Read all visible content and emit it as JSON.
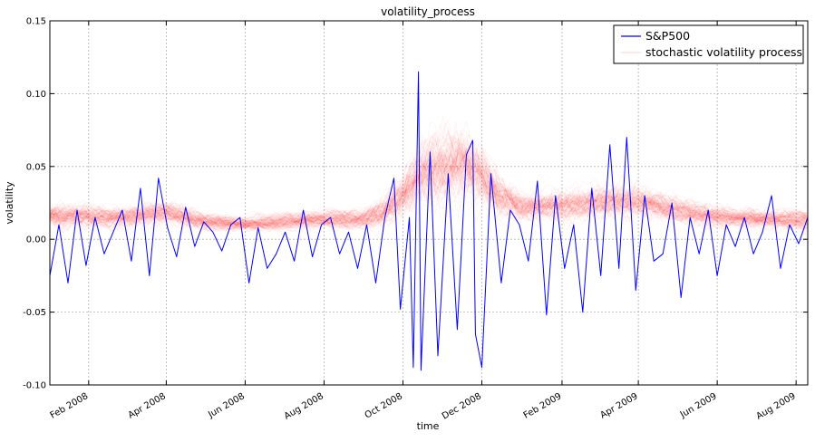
{
  "chart_data": {
    "type": "line",
    "title": "volatility_process",
    "xlabel": "time",
    "ylabel": "volatility",
    "ylim": [
      -0.1,
      0.15
    ],
    "xlim": [
      "2008-01-02",
      "2009-08-10"
    ],
    "grid": true,
    "legend_position": "top-right",
    "y_ticks": [
      "-0.10",
      "-0.05",
      "0.00",
      "0.05",
      "0.10",
      "0.15"
    ],
    "x_ticks": [
      {
        "date": "2008-02-01",
        "label": "Feb 2008"
      },
      {
        "date": "2008-04-01",
        "label": "Apr 2008"
      },
      {
        "date": "2008-06-01",
        "label": "Jun 2008"
      },
      {
        "date": "2008-08-01",
        "label": "Aug 2008"
      },
      {
        "date": "2008-10-01",
        "label": "Oct 2008"
      },
      {
        "date": "2008-12-01",
        "label": "Dec 2008"
      },
      {
        "date": "2009-02-01",
        "label": "Feb 2009"
      },
      {
        "date": "2009-04-01",
        "label": "Apr 2009"
      },
      {
        "date": "2009-06-01",
        "label": "Jun 2009"
      },
      {
        "date": "2009-08-01",
        "label": "Aug 2009"
      }
    ],
    "series": [
      {
        "name": "S&P500",
        "color": "#0000ff",
        "style": "line",
        "approximate": true,
        "x": [
          "2008-01-02",
          "2008-01-09",
          "2008-01-16",
          "2008-01-23",
          "2008-01-30",
          "2008-02-06",
          "2008-02-13",
          "2008-02-20",
          "2008-02-27",
          "2008-03-05",
          "2008-03-12",
          "2008-03-19",
          "2008-03-26",
          "2008-04-02",
          "2008-04-09",
          "2008-04-16",
          "2008-04-23",
          "2008-04-30",
          "2008-05-07",
          "2008-05-14",
          "2008-05-21",
          "2008-05-28",
          "2008-06-04",
          "2008-06-11",
          "2008-06-18",
          "2008-06-25",
          "2008-07-02",
          "2008-07-09",
          "2008-07-16",
          "2008-07-23",
          "2008-07-30",
          "2008-08-06",
          "2008-08-13",
          "2008-08-20",
          "2008-08-27",
          "2008-09-03",
          "2008-09-10",
          "2008-09-17",
          "2008-09-24",
          "2008-09-29",
          "2008-10-06",
          "2008-10-09",
          "2008-10-13",
          "2008-10-15",
          "2008-10-22",
          "2008-10-28",
          "2008-11-05",
          "2008-11-12",
          "2008-11-19",
          "2008-11-24",
          "2008-11-26",
          "2008-12-01",
          "2008-12-08",
          "2008-12-16",
          "2008-12-23",
          "2008-12-30",
          "2009-01-06",
          "2009-01-13",
          "2009-01-20",
          "2009-01-27",
          "2009-02-03",
          "2009-02-10",
          "2009-02-17",
          "2009-02-24",
          "2009-03-03",
          "2009-03-10",
          "2009-03-17",
          "2009-03-23",
          "2009-03-30",
          "2009-04-06",
          "2009-04-13",
          "2009-04-20",
          "2009-04-27",
          "2009-05-04",
          "2009-05-11",
          "2009-05-18",
          "2009-05-25",
          "2009-06-01",
          "2009-06-08",
          "2009-06-15",
          "2009-06-22",
          "2009-06-29",
          "2009-07-06",
          "2009-07-13",
          "2009-07-20",
          "2009-07-27",
          "2009-08-03",
          "2009-08-10"
        ],
        "y": [
          -0.025,
          0.01,
          -0.03,
          0.02,
          -0.018,
          0.015,
          -0.01,
          0.005,
          0.02,
          -0.015,
          0.035,
          -0.025,
          0.042,
          0.008,
          -0.012,
          0.022,
          -0.005,
          0.012,
          0.005,
          -0.008,
          0.01,
          0.015,
          -0.03,
          0.008,
          -0.02,
          -0.01,
          0.005,
          -0.015,
          0.02,
          -0.012,
          0.01,
          0.015,
          -0.01,
          0.005,
          -0.02,
          0.01,
          -0.03,
          0.015,
          0.042,
          -0.048,
          0.015,
          -0.088,
          0.115,
          -0.09,
          0.06,
          -0.08,
          0.045,
          -0.062,
          0.058,
          0.068,
          -0.065,
          -0.088,
          0.045,
          -0.03,
          0.02,
          0.01,
          -0.015,
          0.04,
          -0.052,
          0.03,
          -0.02,
          0.01,
          -0.05,
          0.035,
          -0.025,
          0.065,
          -0.02,
          0.07,
          -0.035,
          0.03,
          -0.015,
          -0.01,
          0.025,
          -0.04,
          0.015,
          -0.01,
          0.02,
          -0.025,
          0.01,
          -0.005,
          0.015,
          -0.01,
          0.005,
          0.03,
          -0.02,
          0.01,
          -0.003,
          0.015
        ]
      },
      {
        "name": "stochastic volatility process",
        "color": "#ff0000",
        "style": "translucent band of sampled paths",
        "approximate": true,
        "x": [
          "2008-01-02",
          "2008-02-01",
          "2008-03-01",
          "2008-04-01",
          "2008-05-01",
          "2008-06-01",
          "2008-07-01",
          "2008-08-01",
          "2008-09-01",
          "2008-09-15",
          "2008-10-01",
          "2008-10-15",
          "2008-11-01",
          "2008-11-15",
          "2008-12-01",
          "2008-12-15",
          "2009-01-01",
          "2009-02-01",
          "2009-03-01",
          "2009-04-01",
          "2009-05-01",
          "2009-06-01",
          "2009-07-01",
          "2009-08-10"
        ],
        "y": [
          0.016,
          0.016,
          0.015,
          0.019,
          0.012,
          0.01,
          0.012,
          0.014,
          0.014,
          0.018,
          0.03,
          0.045,
          0.05,
          0.052,
          0.045,
          0.03,
          0.022,
          0.023,
          0.026,
          0.025,
          0.02,
          0.016,
          0.014,
          0.013
        ],
        "spread": [
          0.008,
          0.006,
          0.006,
          0.007,
          0.005,
          0.004,
          0.005,
          0.005,
          0.006,
          0.008,
          0.012,
          0.018,
          0.02,
          0.02,
          0.016,
          0.012,
          0.008,
          0.008,
          0.009,
          0.009,
          0.007,
          0.006,
          0.006,
          0.006
        ]
      }
    ]
  }
}
